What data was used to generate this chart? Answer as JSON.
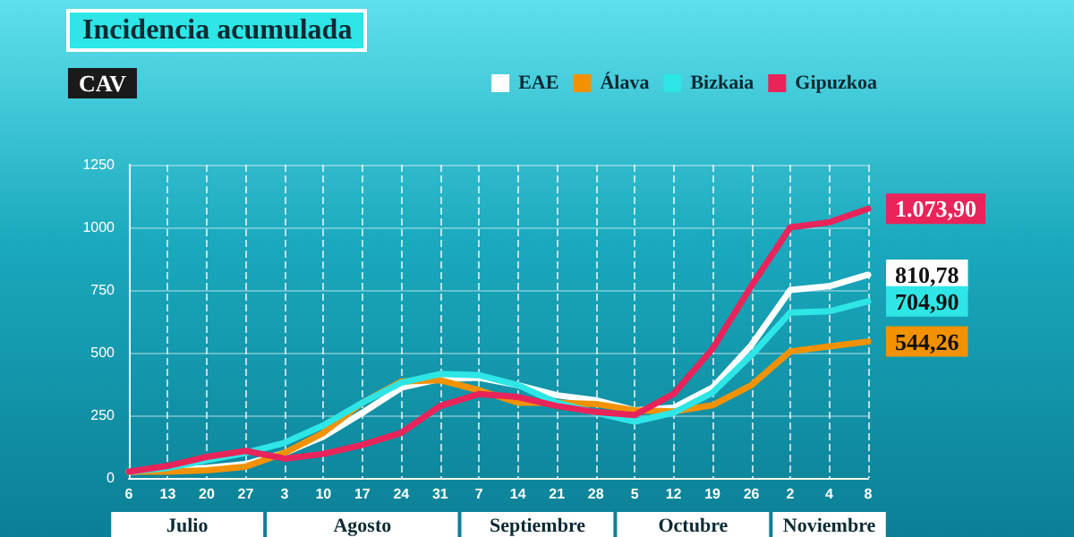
{
  "chart_data": {
    "type": "line",
    "title": "Incidencia acumulada",
    "subtitle": "CAV",
    "categories": [
      "6",
      "13",
      "20",
      "27",
      "3",
      "10",
      "17",
      "24",
      "31",
      "7",
      "14",
      "21",
      "28",
      "5",
      "12",
      "19",
      "26",
      "2",
      "4",
      "8"
    ],
    "series": [
      {
        "name": "EAE",
        "color": "#ffffff",
        "values": [
          25,
          30,
          40,
          55,
          100,
          165,
          260,
          360,
          395,
          400,
          370,
          330,
          310,
          270,
          280,
          360,
          530,
          750,
          765,
          810.78
        ],
        "value_labels": [
          null,
          null,
          null,
          null,
          null,
          null,
          null,
          null,
          null,
          null,
          null,
          null,
          null,
          null,
          null,
          null,
          null,
          null,
          null,
          "810,78"
        ]
      },
      {
        "name": "Álava",
        "color": "#f39200",
        "values": [
          25,
          25,
          30,
          45,
          100,
          180,
          300,
          385,
          390,
          350,
          300,
          300,
          295,
          270,
          265,
          290,
          370,
          505,
          525,
          544.26
        ],
        "value_labels": [
          null,
          null,
          null,
          null,
          null,
          null,
          null,
          null,
          null,
          null,
          null,
          null,
          null,
          null,
          null,
          null,
          null,
          null,
          null,
          "544,26"
        ]
      },
      {
        "name": "Bizkaia",
        "color": "#2ee6e6",
        "values": [
          25,
          40,
          70,
          100,
          140,
          210,
          300,
          380,
          415,
          410,
          370,
          300,
          260,
          225,
          260,
          340,
          490,
          660,
          665,
          704.9
        ],
        "value_labels": [
          null,
          null,
          null,
          null,
          null,
          null,
          null,
          null,
          null,
          null,
          null,
          null,
          null,
          null,
          null,
          null,
          null,
          null,
          null,
          "704,90"
        ]
      },
      {
        "name": "Gipuzkoa",
        "color": "#e8245a",
        "values": [
          25,
          48,
          84,
          108,
          77,
          96,
          132,
          180,
          287,
          335,
          323,
          287,
          263,
          251,
          335,
          515,
          766,
          1000,
          1020,
          1073.9
        ],
        "value_labels": [
          null,
          null,
          null,
          null,
          null,
          null,
          null,
          null,
          null,
          null,
          null,
          null,
          null,
          null,
          null,
          null,
          null,
          null,
          null,
          "1.073,90"
        ]
      }
    ],
    "annotations": [
      "Julio",
      "Agosto",
      "Septiembre",
      "Octubre",
      "Noviembre"
    ],
    "ylim": [
      0,
      1250
    ],
    "yticks": [
      0,
      250,
      500,
      750,
      1000,
      1250
    ],
    "grid": true,
    "legend": "top right",
    "marker": "none",
    "line_style": "solid"
  }
}
